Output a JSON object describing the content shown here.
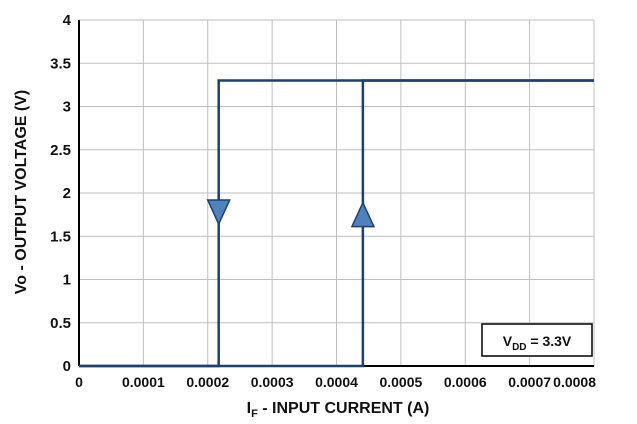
{
  "chart_data": {
    "type": "line",
    "title": "",
    "xlabel": "I",
    "xlabel_sub": "F",
    "xlabel_rest": " - INPUT CURRENT (A)",
    "ylabel": "Vo - OUTPUT VOLTAGE (V)",
    "xlim": [
      0,
      0.0008
    ],
    "ylim": [
      0,
      4
    ],
    "x_ticks": [
      "0",
      "0.0001",
      "0.0002",
      "0.0003",
      "0.0004",
      "0.0005",
      "0.0006",
      "0.0007",
      "0.0008"
    ],
    "y_ticks": [
      "0",
      "0.5",
      "1",
      "1.5",
      "2",
      "2.5",
      "3",
      "3.5",
      "4"
    ],
    "x_tick_values": [
      0,
      0.0001,
      0.0002,
      0.0003,
      0.0004,
      0.0005,
      0.0006,
      0.0007,
      0.0008
    ],
    "y_tick_values": [
      0,
      0.5,
      1,
      1.5,
      2,
      2.5,
      3,
      3.5,
      4
    ],
    "grid": true,
    "series": [
      {
        "direction": "decreasing",
        "x": [
          0.0008,
          0.000217,
          0.000217,
          0
        ],
        "y": [
          3.3,
          3.3,
          0,
          0
        ],
        "arrow": {
          "x": 0.000217,
          "y": 1.78,
          "direction": "down"
        }
      },
      {
        "direction": "increasing",
        "x": [
          0,
          0.000441,
          0.000441,
          0.0008
        ],
        "y": [
          0,
          0,
          3.3,
          3.3
        ],
        "arrow": {
          "x": 0.000441,
          "y": 1.75,
          "direction": "up"
        }
      }
    ],
    "annotation": {
      "prefix": "V",
      "sub": "DD",
      "suffix": " = 3.3V",
      "placement": "bottom-right"
    },
    "colors": {
      "line": "#1f3f6e",
      "arrow_fill": "#4f81bd",
      "arrow_stroke": "#1f3f6e",
      "grid": "#bfbfbf",
      "axis": "#000000"
    }
  }
}
